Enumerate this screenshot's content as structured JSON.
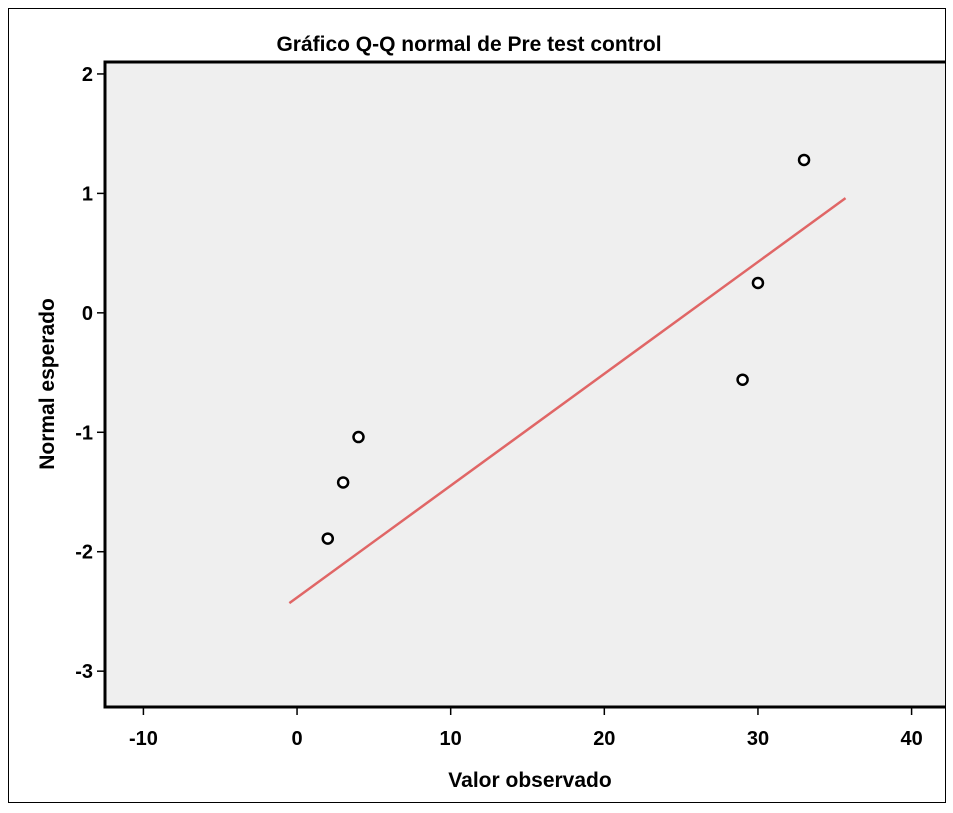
{
  "chart_data": {
    "type": "scatter",
    "title": "Gráfico Q-Q normal de Pre test control",
    "xlabel": "Valor observado",
    "ylabel": "Normal esperado",
    "xlim": [
      -12.5,
      42.5
    ],
    "ylim": [
      -3.3,
      2.1
    ],
    "xticks": [
      -10,
      0,
      10,
      20,
      30,
      40
    ],
    "yticks": [
      -3,
      -2,
      -1,
      0,
      1,
      2
    ],
    "xtick_labels": [
      "-10",
      "0",
      "10",
      "20",
      "30",
      "40"
    ],
    "ytick_labels": [
      "-3",
      "-2",
      "-1",
      "0",
      "1",
      "2"
    ],
    "points": [
      {
        "x": 2,
        "y": -1.89
      },
      {
        "x": 3,
        "y": -1.42
      },
      {
        "x": 4,
        "y": -1.04
      },
      {
        "x": 29,
        "y": -0.56
      },
      {
        "x": 30,
        "y": 0.25
      },
      {
        "x": 33,
        "y": 1.28
      }
    ],
    "reference_line": {
      "x": [
        -0.5,
        35.7
      ],
      "y": [
        -2.43,
        0.96
      ]
    },
    "grid": false,
    "legend": "none",
    "colors": {
      "plot_background": "#efefef",
      "reference_line": "#e06666",
      "marker_edge": "#000000",
      "marker_face": "#ffffff"
    }
  }
}
